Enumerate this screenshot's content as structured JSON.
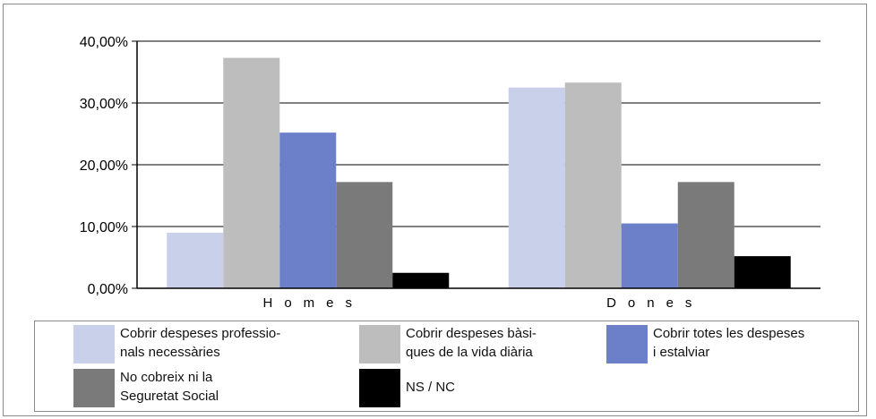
{
  "chart_data": {
    "type": "bar",
    "categories": [
      "H o m e s",
      "D o n e s"
    ],
    "series": [
      {
        "name": "Cobrir despeses professio-\nnals necessàries",
        "color": "#c9d0ea",
        "values": [
          9.0,
          32.5
        ]
      },
      {
        "name": "Cobrir despeses bàsi-\nques de la vida diària",
        "color": "#bdbdbd",
        "values": [
          37.3,
          33.3
        ]
      },
      {
        "name": "Cobrir totes les despeses\ni estalviar",
        "color": "#6b80c8",
        "values": [
          25.2,
          10.5
        ]
      },
      {
        "name": "No cobreix ni la\nSeguretat Social",
        "color": "#7a7a7a",
        "values": [
          17.2,
          17.2
        ]
      },
      {
        "name": "NS / NC",
        "color": "#000000",
        "values": [
          2.5,
          5.2
        ]
      }
    ],
    "yticks": [
      "0,00%",
      "10,00%",
      "20,00%",
      "30,00%",
      "40,00%"
    ],
    "ylim": [
      0,
      40
    ],
    "grid": true,
    "legend_position": "bottom"
  }
}
